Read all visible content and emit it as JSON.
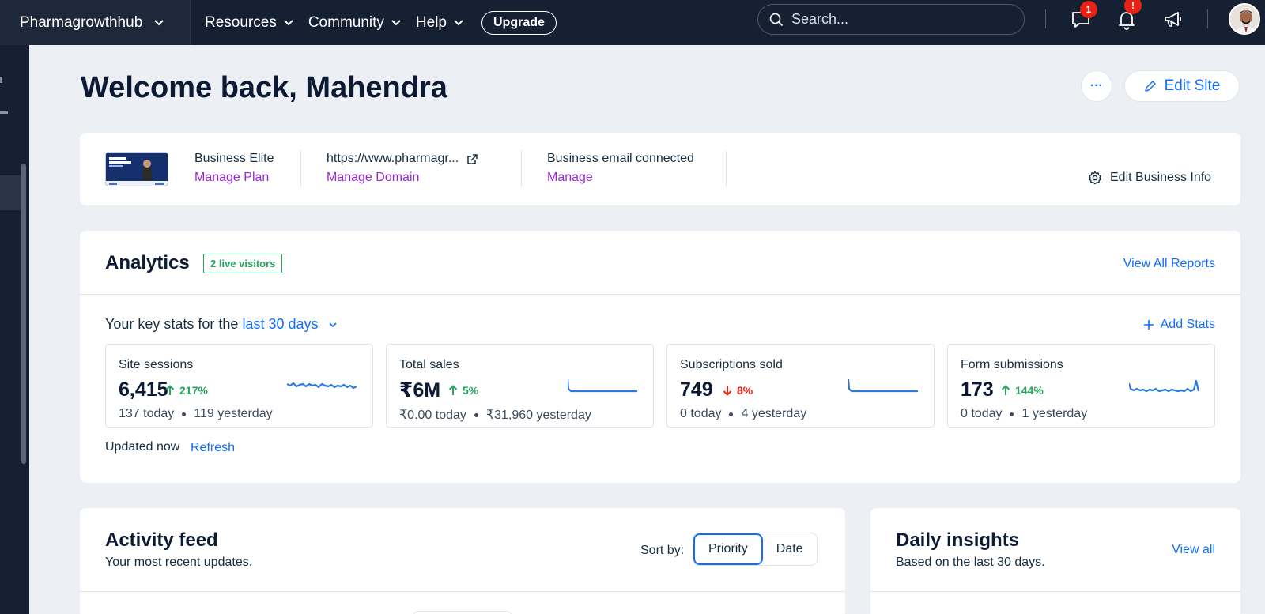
{
  "topbar": {
    "site_name": "Pharmagrowthhub",
    "nav": [
      "Resources",
      "Community",
      "Help"
    ],
    "upgrade": "Upgrade",
    "search_placeholder": "Search...",
    "messages_badge": "1",
    "notifications_badge": "!"
  },
  "main": {
    "welcome": "Welcome back, Mahendra",
    "more": "···",
    "edit_site": "Edit Site"
  },
  "business_info": {
    "plan": "Business Elite",
    "manage_plan": "Manage Plan",
    "domain": "https://www.pharmagr...",
    "manage_domain": "Manage Domain",
    "email_status": "Business email connected",
    "manage_email": "Manage",
    "edit_business": "Edit Business Info"
  },
  "analytics": {
    "title": "Analytics",
    "live_visitors": "2 live visitors",
    "view_reports": "View All Reports",
    "key_stats_prefix": "Your key stats for the",
    "range": "last 30 days",
    "add_stats": "Add Stats",
    "stats": [
      {
        "name": "Site sessions",
        "value": "6,415",
        "change": "217%",
        "direction": "up",
        "today": "137 today",
        "yesterday": "119 yesterday"
      },
      {
        "name": "Total sales",
        "value": "₹6M",
        "change": "5%",
        "direction": "up",
        "today": "₹0.00 today",
        "yesterday": "₹31,960 yesterday"
      },
      {
        "name": "Subscriptions sold",
        "value": "749",
        "change": "8%",
        "direction": "down",
        "today": "0 today",
        "yesterday": "4 yesterday"
      },
      {
        "name": "Form submissions",
        "value": "173",
        "change": "144%",
        "direction": "up",
        "today": "0 today",
        "yesterday": "1 yesterday"
      }
    ],
    "updated": "Updated now",
    "refresh": "Refresh"
  },
  "activity": {
    "title": "Activity feed",
    "subtitle": "Your most recent updates.",
    "sort_label": "Sort by:",
    "sort_options": [
      "Priority",
      "Date"
    ],
    "sort_selected": "Priority"
  },
  "insights": {
    "title": "Daily insights",
    "subtitle": "Based on the last 30 days.",
    "view_all": "View all"
  },
  "colors": {
    "accent": "#116dff",
    "link_purple": "#9a27d5",
    "positive": "#25a55f",
    "negative": "#e62214",
    "topbar": "#162033"
  }
}
